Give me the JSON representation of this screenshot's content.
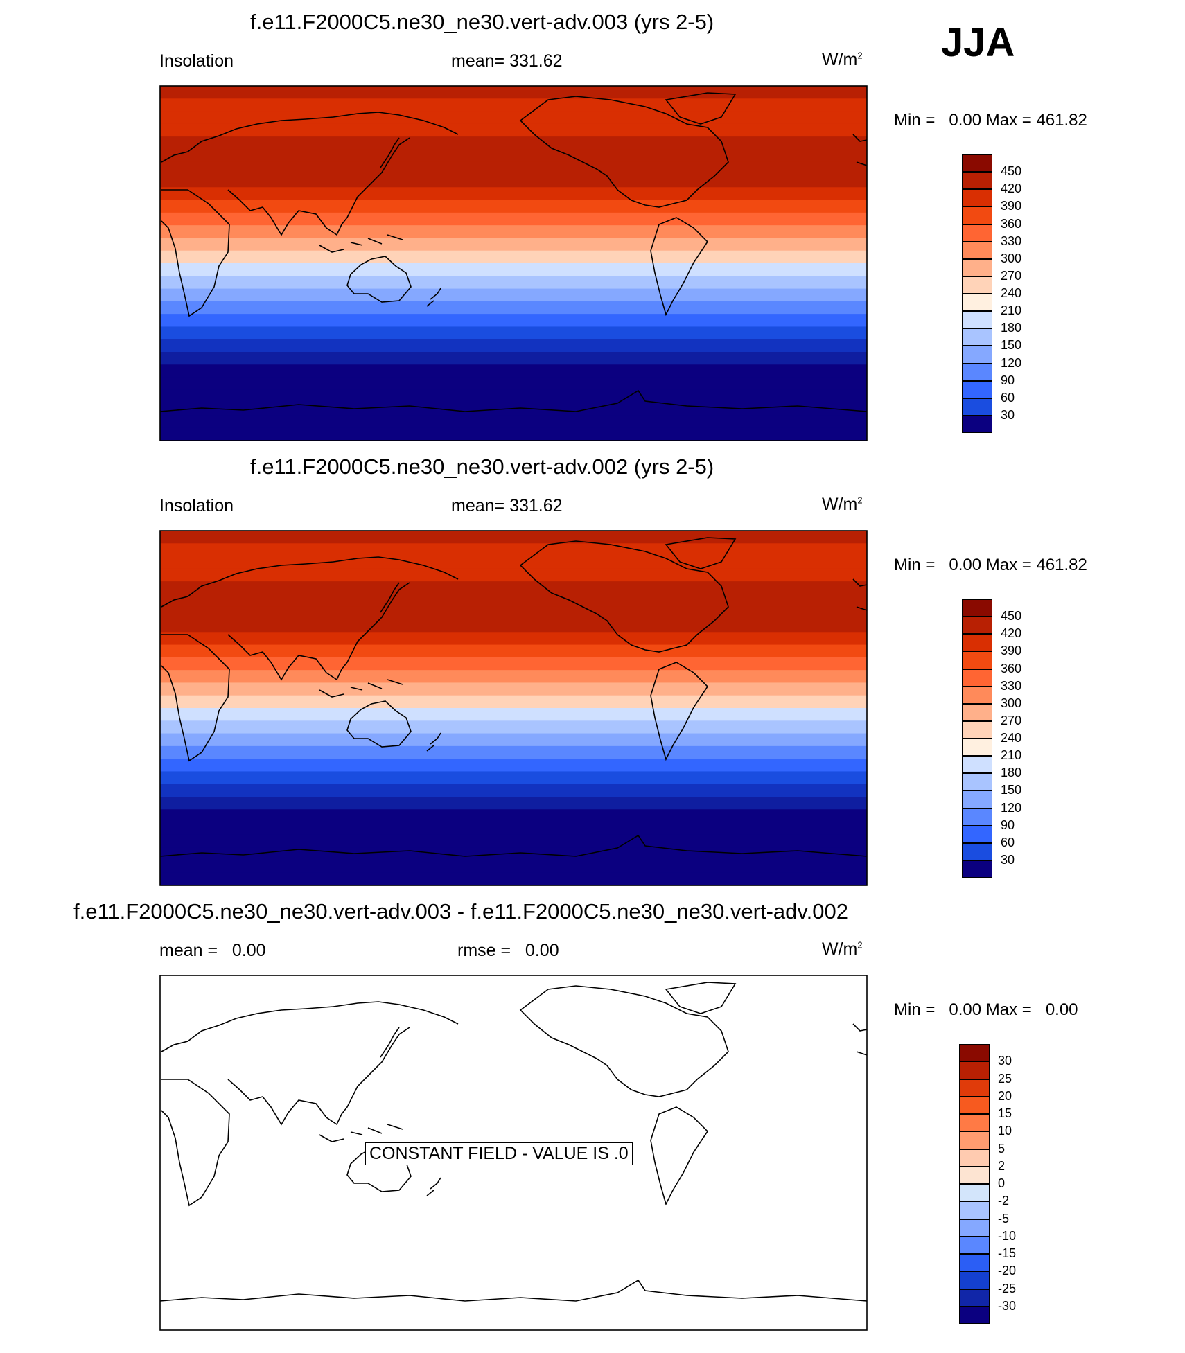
{
  "season": "JJA",
  "colorbar_colors": {
    "full": [
      "#0b0080",
      "#0f1ea0",
      "#1233c0",
      "#1a4de0",
      "#3366ff",
      "#5a87ff",
      "#85a8ff",
      "#a9c4ff",
      "#cfe0ff",
      "#fff0e0",
      "#ffd3b8",
      "#ffb08a",
      "#ff8a5a",
      "#ff6533",
      "#f24a11",
      "#d92f02",
      "#b82003",
      "#8a0a00"
    ],
    "diff": [
      "#0b0080",
      "#1126a8",
      "#1440d0",
      "#2b5ef5",
      "#5a87ff",
      "#85a8ff",
      "#a9c4ff",
      "#d3e5fb",
      "#ffffff",
      "#fde4d2",
      "#ffcbb0",
      "#ff9c70",
      "#ff7a45",
      "#f75a1f",
      "#e03b0a",
      "#b82003",
      "#8a0a00"
    ]
  },
  "chart_data": [
    {
      "type": "heatmap",
      "title": "f.e11.F2000C5.ne30_ne30.vert-adv.003 (yrs 2-5)",
      "variable": "Insolation",
      "stat_label": "mean= 331.62",
      "mean": 331.62,
      "units": "W/m",
      "units_sup": "2",
      "min_label": "Min =",
      "min": "0.00",
      "max_label": "Max =",
      "max": "461.82",
      "colorbar_levels": [
        "450",
        "420",
        "390",
        "360",
        "330",
        "300",
        "270",
        "240",
        "210",
        "180",
        "150",
        "120",
        "90",
        "60",
        "30"
      ],
      "band_values_north_to_south": [
        460,
        440,
        440,
        440,
        462,
        462,
        462,
        462,
        420,
        390,
        360,
        330,
        300,
        270,
        240,
        210,
        180,
        150,
        120,
        90,
        60,
        30,
        0,
        0,
        0,
        0,
        0,
        0
      ]
    },
    {
      "type": "heatmap",
      "title": "f.e11.F2000C5.ne30_ne30.vert-adv.002 (yrs 2-5)",
      "variable": "Insolation",
      "stat_label": "mean= 331.62",
      "mean": 331.62,
      "units": "W/m",
      "units_sup": "2",
      "min_label": "Min =",
      "min": "0.00",
      "max_label": "Max =",
      "max": "461.82",
      "colorbar_levels": [
        "450",
        "420",
        "390",
        "360",
        "330",
        "300",
        "270",
        "240",
        "210",
        "180",
        "150",
        "120",
        "90",
        "60",
        "30"
      ],
      "band_values_north_to_south": [
        460,
        440,
        440,
        440,
        462,
        462,
        462,
        462,
        420,
        390,
        360,
        330,
        300,
        270,
        240,
        210,
        180,
        150,
        120,
        90,
        60,
        30,
        0,
        0,
        0,
        0,
        0,
        0
      ]
    },
    {
      "type": "heatmap",
      "title": "f.e11.F2000C5.ne30_ne30.vert-adv.003 - f.e11.F2000C5.ne30_ne30.vert-adv.002",
      "stat_label": "mean =   0.00",
      "rmse_label": "rmse =   0.00",
      "mean": 0.0,
      "rmse": 0.0,
      "units": "W/m",
      "units_sup": "2",
      "min_label": "Min =",
      "min": "0.00",
      "max_label": "Max =",
      "max": "0.00",
      "colorbar_levels": [
        "30",
        "25",
        "20",
        "15",
        "10",
        "5",
        "2",
        "0",
        "-2",
        "-5",
        "-10",
        "-15",
        "-20",
        "-25",
        "-30"
      ],
      "annotation": "CONSTANT FIELD - VALUE IS .0"
    }
  ]
}
